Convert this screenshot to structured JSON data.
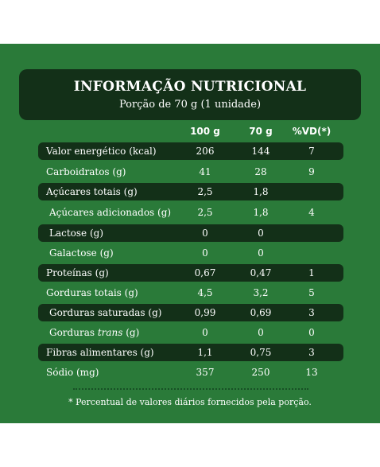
{
  "title": "INFORMAÇÃO NUTRICIONAL",
  "serving": "Porção de 70 g (1 unidade)",
  "columns": [
    "100 g",
    "70 g",
    "%VD(*)"
  ],
  "rows": [
    {
      "label": "Valor energético (kcal)",
      "v100": "206",
      "v70": "144",
      "vd": "7"
    },
    {
      "label": "Carboidratos (g)",
      "v100": "41",
      "v70": "28",
      "vd": "9"
    },
    {
      "label": "Açúcares totais (g)",
      "v100": "2,5",
      "v70": "1,8",
      "vd": ""
    },
    {
      "label": "Açúcares adicionados (g)",
      "v100": "2,5",
      "v70": "1,8",
      "vd": "4"
    },
    {
      "label": "Lactose (g)",
      "v100": "0",
      "v70": "0",
      "vd": ""
    },
    {
      "label": "Galactose (g)",
      "v100": "0",
      "v70": "0",
      "vd": ""
    },
    {
      "label": "Proteínas (g)",
      "v100": "0,67",
      "v70": "0,47",
      "vd": "1"
    },
    {
      "label": "Gorduras totais (g)",
      "v100": "4,5",
      "v70": "3,2",
      "vd": "5"
    },
    {
      "label": "Gorduras saturadas (g)",
      "v100": "0,99",
      "v70": "0,69",
      "vd": "3"
    },
    {
      "label_prefix": "Gorduras ",
      "label_italic": "trans",
      "label_suffix": " (g)",
      "v100": "0",
      "v70": "0",
      "vd": "0"
    },
    {
      "label": "Fibras alimentares (g)",
      "v100": "1,1",
      "v70": "0,75",
      "vd": "3"
    },
    {
      "label": "Sódio (mg)",
      "v100": "357",
      "v70": "250",
      "vd": "13"
    }
  ],
  "footnote": "* Percentual de valores diários fornecidos pela porção.",
  "colors": {
    "background": "#2a7a39",
    "dark": "#133018",
    "text": "#ffffff"
  }
}
